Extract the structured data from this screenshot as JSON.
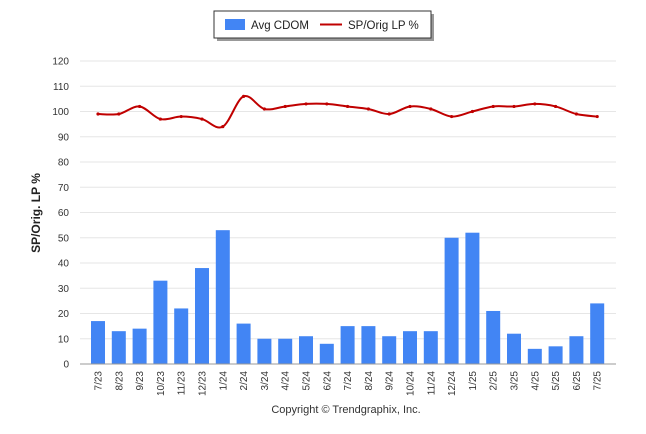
{
  "chart_data": {
    "type": "bar",
    "categories": [
      "7/23",
      "8/23",
      "9/23",
      "10/23",
      "11/23",
      "12/23",
      "1/24",
      "2/24",
      "3/24",
      "4/24",
      "5/24",
      "6/24",
      "7/24",
      "8/24",
      "9/24",
      "10/24",
      "11/24",
      "12/24",
      "1/25",
      "2/25",
      "3/25",
      "4/25",
      "5/25",
      "6/25",
      "7/25"
    ],
    "series": [
      {
        "name": "Avg CDOM",
        "type": "bar",
        "color": "#4285f4",
        "values": [
          17,
          13,
          14,
          33,
          22,
          38,
          53,
          16,
          10,
          10,
          11,
          8,
          15,
          15,
          11,
          13,
          13,
          50,
          52,
          21,
          12,
          6,
          7,
          11,
          24
        ]
      },
      {
        "name": "SP/Orig LP %",
        "type": "line",
        "color": "#c00000",
        "values": [
          99,
          99,
          102,
          97,
          98,
          97,
          94,
          106,
          101,
          102,
          103,
          103,
          102,
          101,
          99,
          102,
          101,
          98,
          100,
          102,
          102,
          103,
          102,
          99,
          98
        ]
      }
    ],
    "ylabel": "SP/Orig. LP %",
    "ylim": [
      0,
      120
    ],
    "yticks": [
      0,
      10,
      20,
      30,
      40,
      50,
      60,
      70,
      80,
      90,
      100,
      110,
      120
    ],
    "grid": true,
    "legend_position": "top-center",
    "credit": "Copyright © Trendgraphix, Inc."
  }
}
